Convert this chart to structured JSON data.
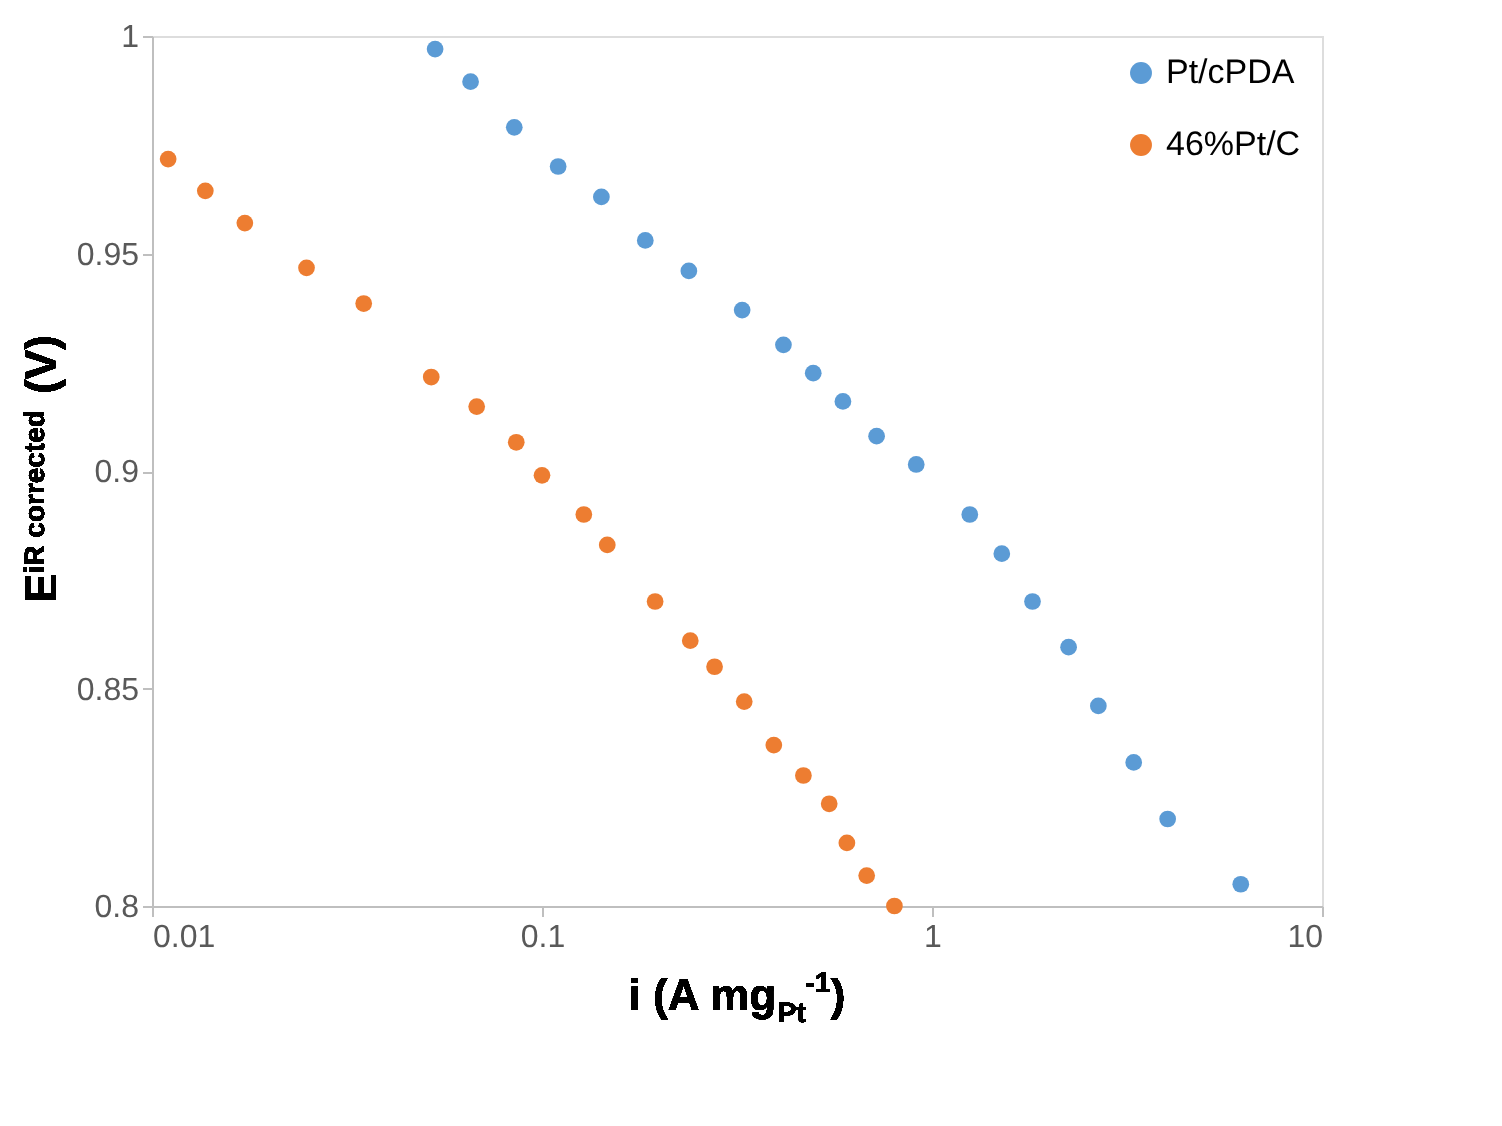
{
  "chart_data": {
    "type": "scatter",
    "xlabel": "i (A mg$_{Pt}$$^{-1}$)",
    "ylabel": "E$_{iR corrected}$ (V)",
    "log": "x",
    "xlim": [
      0.01,
      10
    ],
    "xticks": [
      0.01,
      0.1,
      1,
      10
    ],
    "ylim": [
      0.8,
      1
    ],
    "yticks": [
      0.8,
      0.85,
      0.9,
      0.95,
      1
    ],
    "grid": false,
    "legend": "top right",
    "marker": "circle",
    "series": [
      {
        "name": "Pt/cPDA",
        "color": "#5b9bd5",
        "x": [
          0.0532,
          0.0656,
          0.0849,
          0.11,
          0.142,
          0.184,
          0.238,
          0.326,
          0.416,
          0.496,
          0.591,
          0.721,
          0.911,
          1.25,
          1.51,
          1.81,
          2.24,
          2.67,
          3.29,
          4.02,
          6.19
        ],
        "values": [
          0.997,
          0.9895,
          0.979,
          0.97,
          0.963,
          0.953,
          0.946,
          0.937,
          0.929,
          0.9225,
          0.916,
          0.908,
          0.9015,
          0.89,
          0.881,
          0.87,
          0.8595,
          0.846,
          0.833,
          0.82,
          0.805
        ]
      },
      {
        "name": "46%Pt/C",
        "color": "#ed7d31",
        "x": [
          0.011,
          0.0137,
          0.0173,
          0.0249,
          0.0349,
          0.052,
          0.068,
          0.0859,
          0.1,
          0.128,
          0.147,
          0.195,
          0.24,
          0.277,
          0.33,
          0.393,
          0.468,
          0.545,
          0.605,
          0.68,
          0.801
        ],
        "values": [
          0.9717,
          0.9644,
          0.957,
          0.9467,
          0.9385,
          0.9216,
          0.9148,
          0.9066,
          0.899,
          0.89,
          0.883,
          0.87,
          0.861,
          0.855,
          0.847,
          0.837,
          0.83,
          0.8235,
          0.8145,
          0.807,
          0.8
        ]
      }
    ]
  }
}
